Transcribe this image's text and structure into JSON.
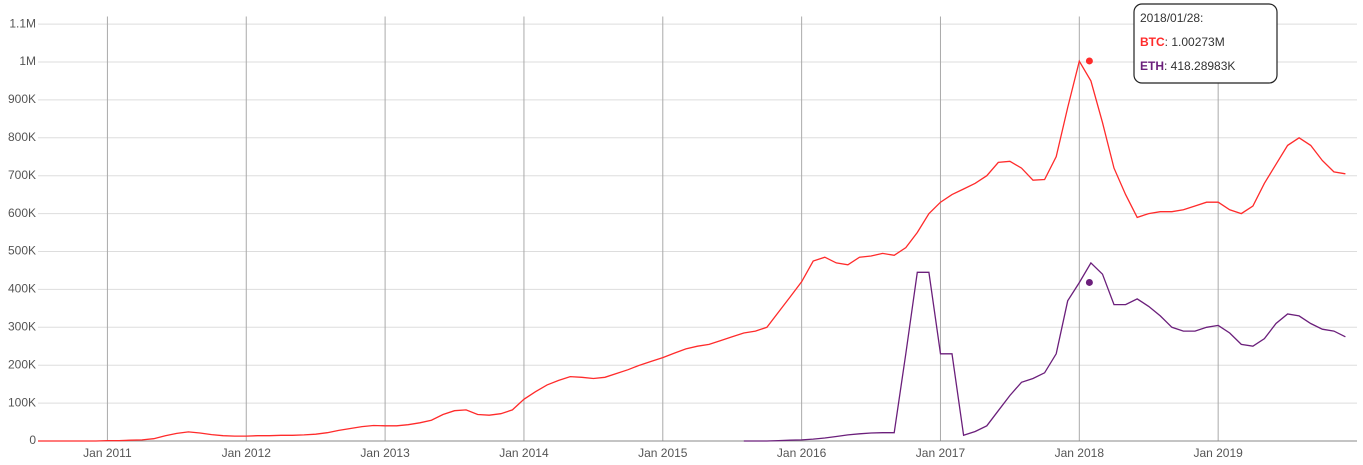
{
  "chart_data": {
    "type": "line",
    "x": [
      "2010-07",
      "2010-08",
      "2010-09",
      "2010-10",
      "2010-11",
      "2010-12",
      "2011-01",
      "2011-02",
      "2011-03",
      "2011-04",
      "2011-05",
      "2011-06",
      "2011-07",
      "2011-08",
      "2011-09",
      "2011-10",
      "2011-11",
      "2011-12",
      "2012-01",
      "2012-02",
      "2012-03",
      "2012-04",
      "2012-05",
      "2012-06",
      "2012-07",
      "2012-08",
      "2012-09",
      "2012-10",
      "2012-11",
      "2012-12",
      "2013-01",
      "2013-02",
      "2013-03",
      "2013-04",
      "2013-05",
      "2013-06",
      "2013-07",
      "2013-08",
      "2013-09",
      "2013-10",
      "2013-11",
      "2013-12",
      "2014-01",
      "2014-02",
      "2014-03",
      "2014-04",
      "2014-05",
      "2014-06",
      "2014-07",
      "2014-08",
      "2014-09",
      "2014-10",
      "2014-11",
      "2014-12",
      "2015-01",
      "2015-02",
      "2015-03",
      "2015-04",
      "2015-05",
      "2015-06",
      "2015-07",
      "2015-08",
      "2015-09",
      "2015-10",
      "2015-11",
      "2015-12",
      "2016-01",
      "2016-02",
      "2016-03",
      "2016-04",
      "2016-05",
      "2016-06",
      "2016-07",
      "2016-08",
      "2016-09",
      "2016-10",
      "2016-11",
      "2016-12",
      "2017-01",
      "2017-02",
      "2017-03",
      "2017-04",
      "2017-05",
      "2017-06",
      "2017-07",
      "2017-08",
      "2017-09",
      "2017-10",
      "2017-11",
      "2017-12",
      "2018-01",
      "2018-02",
      "2018-03",
      "2018-04",
      "2018-05",
      "2018-06",
      "2018-07",
      "2018-08",
      "2018-09",
      "2018-10",
      "2018-11",
      "2018-12",
      "2019-01",
      "2019-02",
      "2019-03",
      "2019-04",
      "2019-05",
      "2019-06",
      "2019-07",
      "2019-08",
      "2019-09",
      "2019-10",
      "2019-11",
      "2019-12"
    ],
    "series": [
      {
        "name": "BTC",
        "color": "#ff2b2b",
        "values": [
          0,
          0,
          0,
          0,
          0,
          0,
          1000,
          1000,
          2000,
          3000,
          6000,
          14000,
          20000,
          24000,
          21000,
          17000,
          14000,
          13000,
          13000,
          14000,
          14000,
          15000,
          15000,
          16000,
          18000,
          22000,
          28000,
          33000,
          38000,
          41000,
          40000,
          40000,
          43000,
          48000,
          55000,
          70000,
          80000,
          82000,
          70000,
          68000,
          72000,
          82000,
          110000,
          130000,
          148000,
          160000,
          170000,
          168000,
          165000,
          168000,
          178000,
          188000,
          200000,
          210000,
          220000,
          232000,
          243000,
          250000,
          255000,
          265000,
          275000,
          285000,
          290000,
          300000,
          340000,
          380000,
          420000,
          475000,
          485000,
          470000,
          465000,
          485000,
          488000,
          495000,
          490000,
          510000,
          550000,
          600000,
          630000,
          650000,
          665000,
          680000,
          700000,
          735000,
          738000,
          720000,
          688000,
          690000,
          750000,
          880000,
          1002000,
          950000,
          840000,
          720000,
          650000,
          590000,
          600000,
          605000,
          605000,
          610000,
          620000,
          630000,
          630000,
          610000,
          600000,
          620000,
          680000,
          730000,
          780000,
          800000,
          780000,
          740000,
          710000,
          705000
        ]
      },
      {
        "name": "ETH",
        "color": "#6b1f7b",
        "values": [
          null,
          null,
          null,
          null,
          null,
          null,
          null,
          null,
          null,
          null,
          null,
          null,
          null,
          null,
          null,
          null,
          null,
          null,
          null,
          null,
          null,
          null,
          null,
          null,
          null,
          null,
          null,
          null,
          null,
          null,
          null,
          null,
          null,
          null,
          null,
          null,
          null,
          null,
          null,
          null,
          null,
          null,
          null,
          null,
          null,
          null,
          null,
          null,
          null,
          null,
          null,
          null,
          null,
          null,
          null,
          null,
          null,
          null,
          null,
          null,
          null,
          0,
          0,
          0,
          1000,
          2000,
          3000,
          5000,
          8000,
          12000,
          16000,
          19000,
          21000,
          22000,
          22000,
          230000,
          445000,
          445000,
          230000,
          230000,
          15000,
          25000,
          40000,
          80000,
          120000,
          155000,
          165000,
          180000,
          230000,
          370000,
          418000,
          470000,
          440000,
          360000,
          360000,
          375000,
          355000,
          330000,
          300000,
          290000,
          290000,
          300000,
          305000,
          285000,
          255000,
          250000,
          270000,
          310000,
          335000,
          330000,
          310000,
          295000,
          290000,
          275000
        ]
      }
    ],
    "xlim": [
      "2010-07",
      "2020-01"
    ],
    "xticks": [
      {
        "value": "2011-01",
        "label": "Jan 2011"
      },
      {
        "value": "2012-01",
        "label": "Jan 2012"
      },
      {
        "value": "2013-01",
        "label": "Jan 2013"
      },
      {
        "value": "2014-01",
        "label": "Jan 2014"
      },
      {
        "value": "2015-01",
        "label": "Jan 2015"
      },
      {
        "value": "2016-01",
        "label": "Jan 2016"
      },
      {
        "value": "2017-01",
        "label": "Jan 2017"
      },
      {
        "value": "2018-01",
        "label": "Jan 2018"
      },
      {
        "value": "2019-01",
        "label": "Jan 2019"
      }
    ],
    "ylim": [
      0,
      1120000
    ],
    "yticks": [
      0,
      {
        "value": 100000,
        "label": "100K"
      },
      {
        "value": 200000,
        "label": "200K"
      },
      {
        "value": 300000,
        "label": "300K"
      },
      {
        "value": 400000,
        "label": "400K"
      },
      {
        "value": 500000,
        "label": "500K"
      },
      {
        "value": 600000,
        "label": "600K"
      },
      {
        "value": 700000,
        "label": "700K"
      },
      {
        "value": 800000,
        "label": "800K"
      },
      {
        "value": 900000,
        "label": "900K"
      },
      {
        "value": 1000000,
        "label": "1M"
      },
      {
        "value": 1100000,
        "label": "1.1M"
      }
    ],
    "grid": true,
    "tooltip": {
      "x": "2018-01-28",
      "title": "2018/01/28:",
      "separator": ": ",
      "items": [
        {
          "value": 1002730,
          "label": "1.00273M"
        },
        {
          "value": 418289.83,
          "label": "418.28983K"
        }
      ]
    }
  }
}
